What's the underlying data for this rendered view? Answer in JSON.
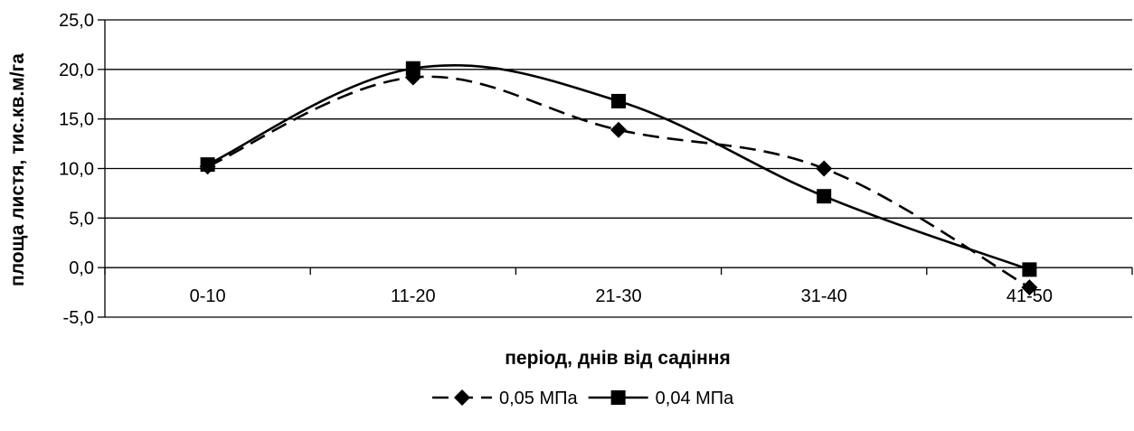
{
  "chart_data": {
    "type": "line",
    "categories": [
      "0-10",
      "11-20",
      "21-30",
      "31-40",
      "41-50"
    ],
    "series": [
      {
        "name": "0,05 МПа",
        "values": [
          10.2,
          19.2,
          13.9,
          10.0,
          -2.0
        ],
        "line_style": "dashed",
        "marker": "diamond",
        "color": "#000000"
      },
      {
        "name": "0,04 МПа",
        "values": [
          10.4,
          20.1,
          16.8,
          7.2,
          -0.2
        ],
        "line_style": "solid",
        "marker": "square",
        "color": "#000000"
      }
    ],
    "xlabel": "період, днів від садіння",
    "ylabel": "площа листя, тис.кв.м/га",
    "ylim": [
      -5,
      25
    ],
    "yticks": [
      -5,
      0,
      5,
      10,
      15,
      20,
      25
    ],
    "ytick_labels": [
      "-5,0",
      "0,0",
      "5,0",
      "10,0",
      "15,0",
      "20,0",
      "25,0"
    ],
    "grid": "horizontal",
    "legend_position": "bottom",
    "smoothed": true
  }
}
